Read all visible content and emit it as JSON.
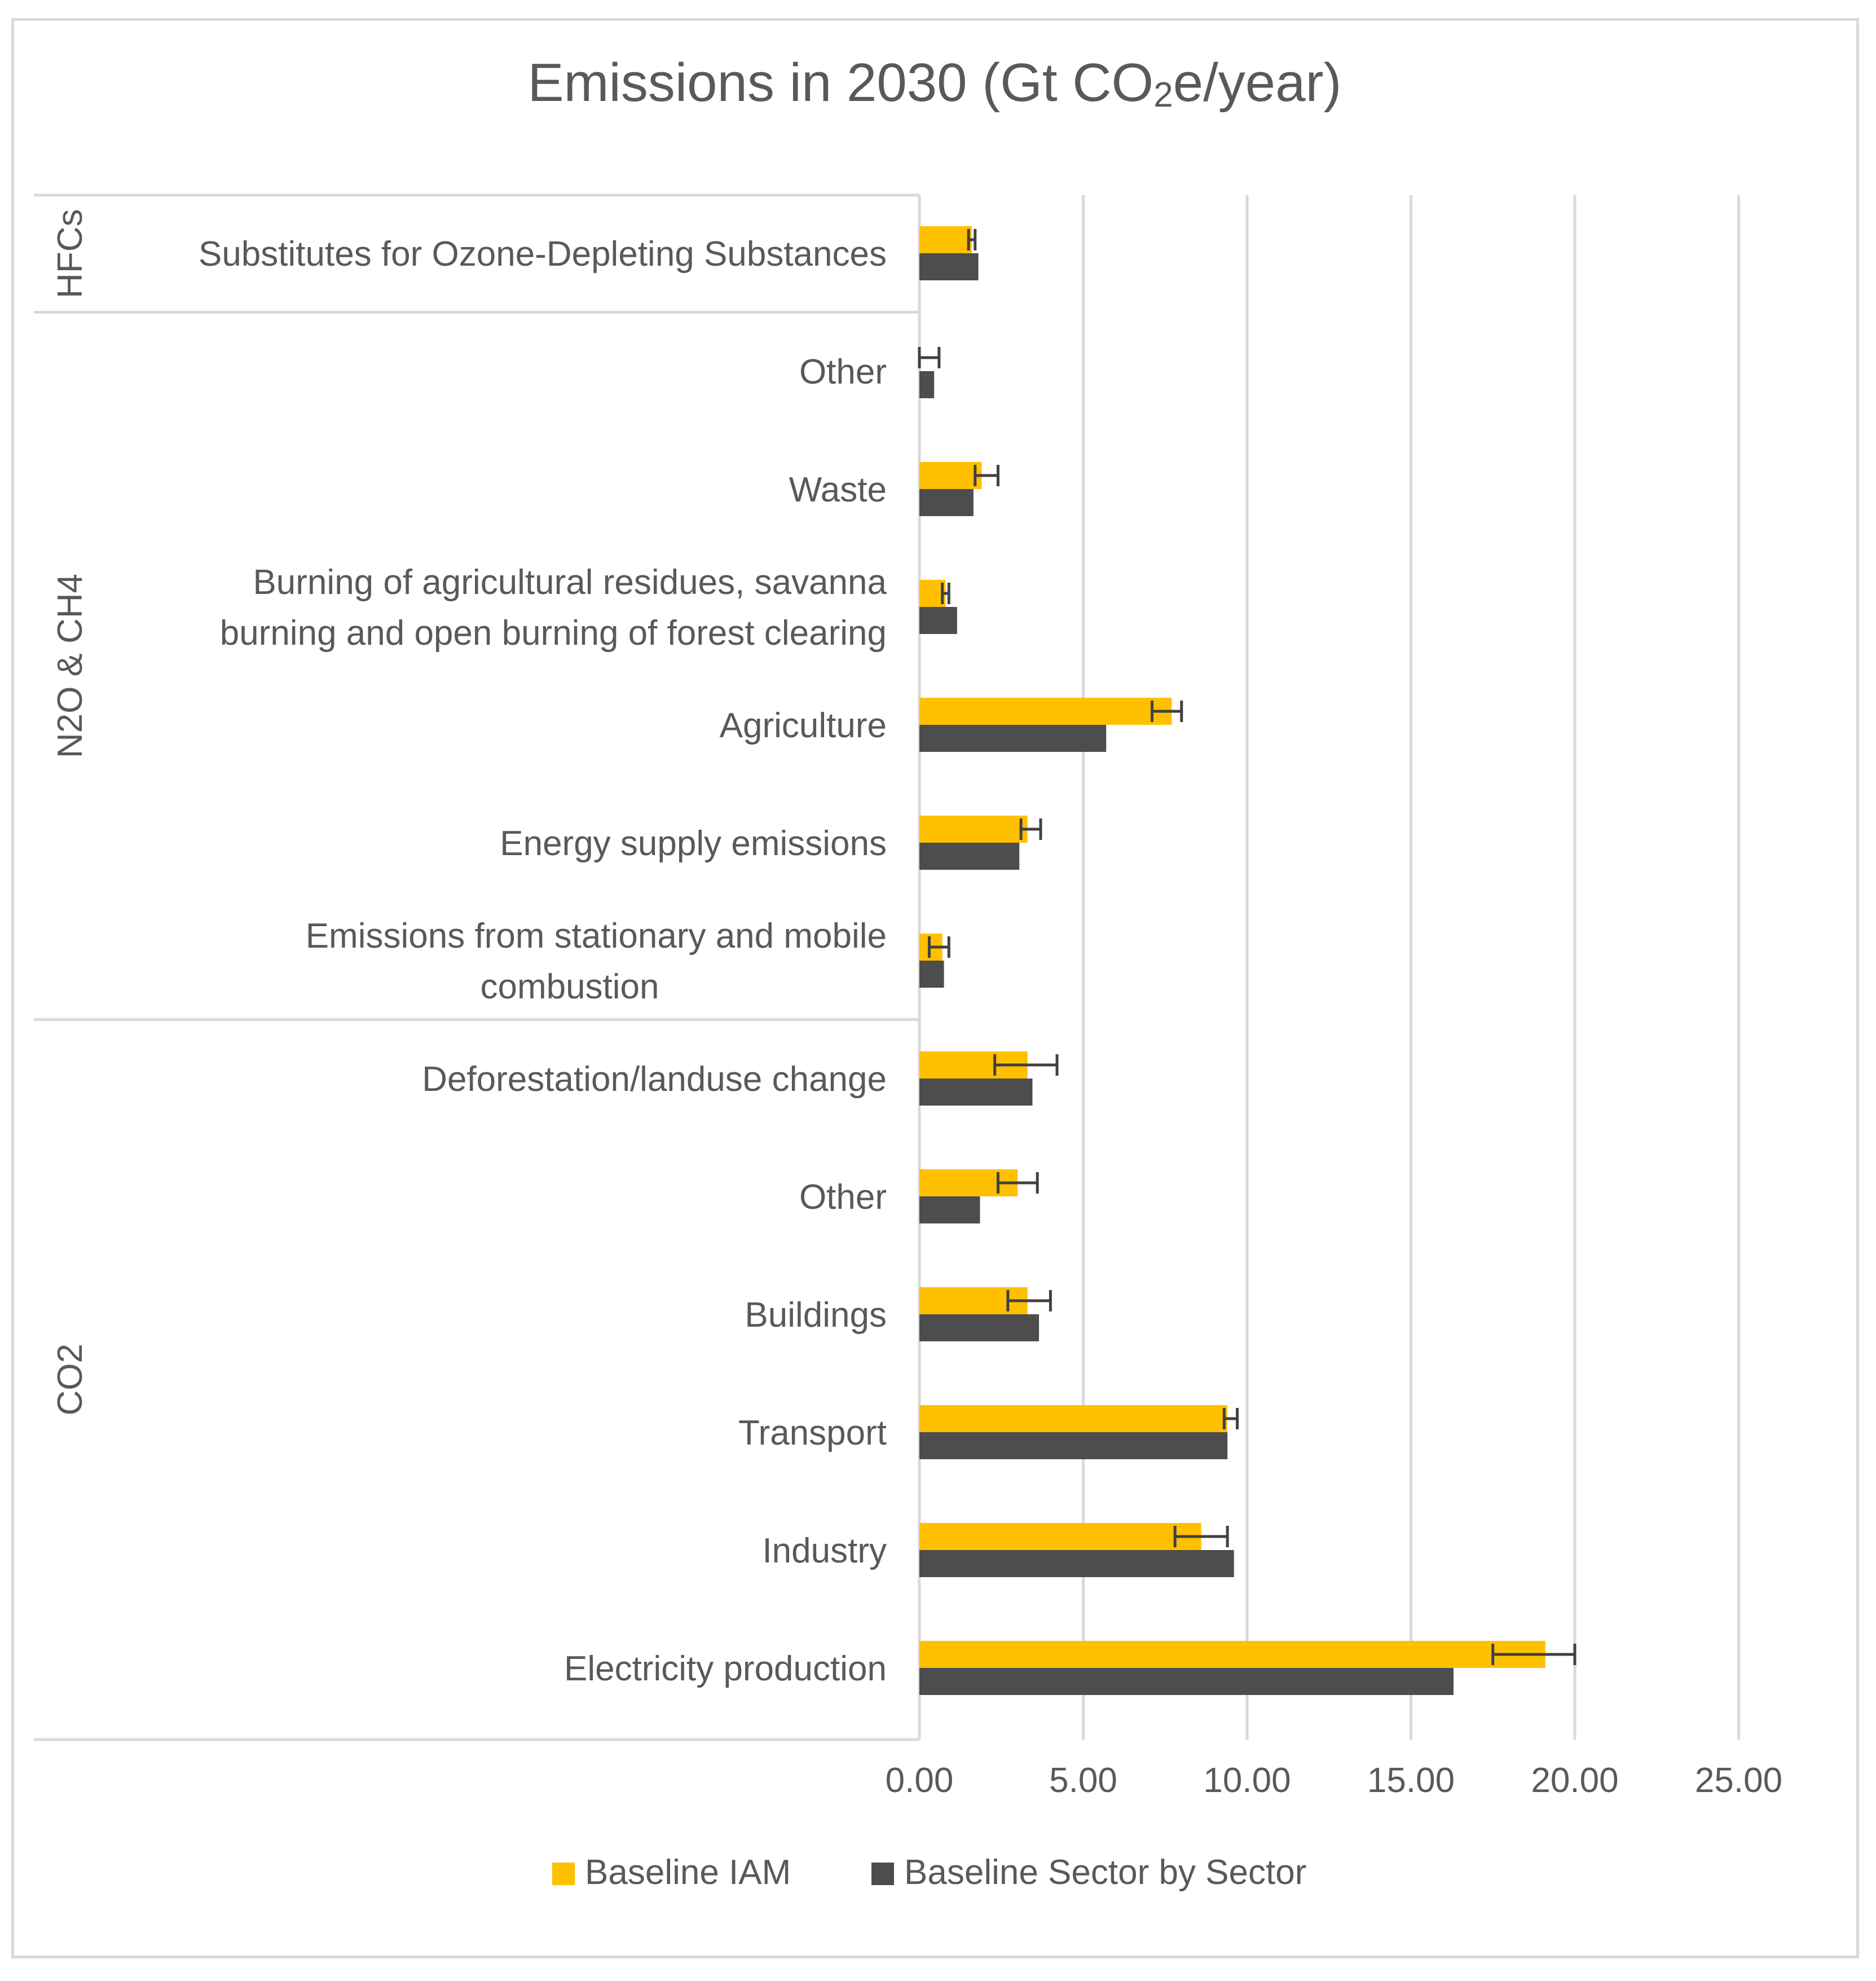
{
  "chart_data": {
    "type": "bar",
    "orientation": "horizontal",
    "title": "Emissions in 2030 (Gt CO₂e/year)",
    "title_main": "Emissions in 2030 (Gt CO",
    "title_sub": "2",
    "title_tail": "e/year)",
    "xlabel": "",
    "ylabel": "",
    "xlim": [
      0,
      25
    ],
    "xticks": [
      0,
      5,
      10,
      15,
      20,
      25
    ],
    "xtick_labels": [
      "0.00",
      "5.00",
      "10.00",
      "15.00",
      "20.00",
      "25.00"
    ],
    "grid": true,
    "legend_position": "bottom",
    "groups": [
      {
        "name": "HFCs",
        "categories": [
          "Substitutes for Ozone-Depleting Substances"
        ]
      },
      {
        "name": "N2O & CH4",
        "categories": [
          "Other",
          "Waste",
          "Burning of agricultural residues, savanna burning and open burning of forest clearing",
          "Agriculture",
          "Energy supply emissions",
          "Emissions from stationary and mobile combustion"
        ]
      },
      {
        "name": "CO2",
        "categories": [
          "Deforestation/landuse change",
          "Other",
          "Buildings",
          "Transport",
          "Industry",
          "Electricity production"
        ]
      }
    ],
    "categories": [
      [
        "Substitutes for Ozone-Depleting Substances"
      ],
      [
        "Other"
      ],
      [
        "Waste"
      ],
      [
        "Burning of agricultural residues, savanna",
        "burning and open burning of forest clearing"
      ],
      [
        "Agriculture"
      ],
      [
        "Energy supply emissions"
      ],
      [
        "Emissions from stationary and mobile",
        "combustion"
      ],
      [
        "Deforestation/landuse change"
      ],
      [
        "Other"
      ],
      [
        "Buildings"
      ],
      [
        "Transport"
      ],
      [
        "Industry"
      ],
      [
        "Electricity production"
      ]
    ],
    "series": [
      {
        "name": "Baseline IAM",
        "color": "#FFC000",
        "values": [
          1.6,
          0.0,
          1.9,
          0.8,
          7.7,
          3.3,
          0.7,
          3.3,
          3.0,
          3.3,
          9.4,
          8.6,
          19.1
        ],
        "error_low": [
          1.5,
          0.0,
          1.7,
          0.7,
          7.1,
          3.1,
          0.3,
          2.3,
          2.4,
          2.7,
          9.3,
          7.8,
          17.5
        ],
        "error_high": [
          1.7,
          0.6,
          2.4,
          0.9,
          8.0,
          3.7,
          0.9,
          4.2,
          3.6,
          4.0,
          9.7,
          9.4,
          20.0
        ]
      },
      {
        "name": "Baseline Sector by Sector",
        "color": "#4D4D4D",
        "values": [
          1.8,
          0.45,
          1.65,
          1.15,
          5.7,
          3.05,
          0.75,
          3.45,
          1.85,
          3.65,
          9.4,
          9.6,
          16.3
        ]
      }
    ]
  }
}
